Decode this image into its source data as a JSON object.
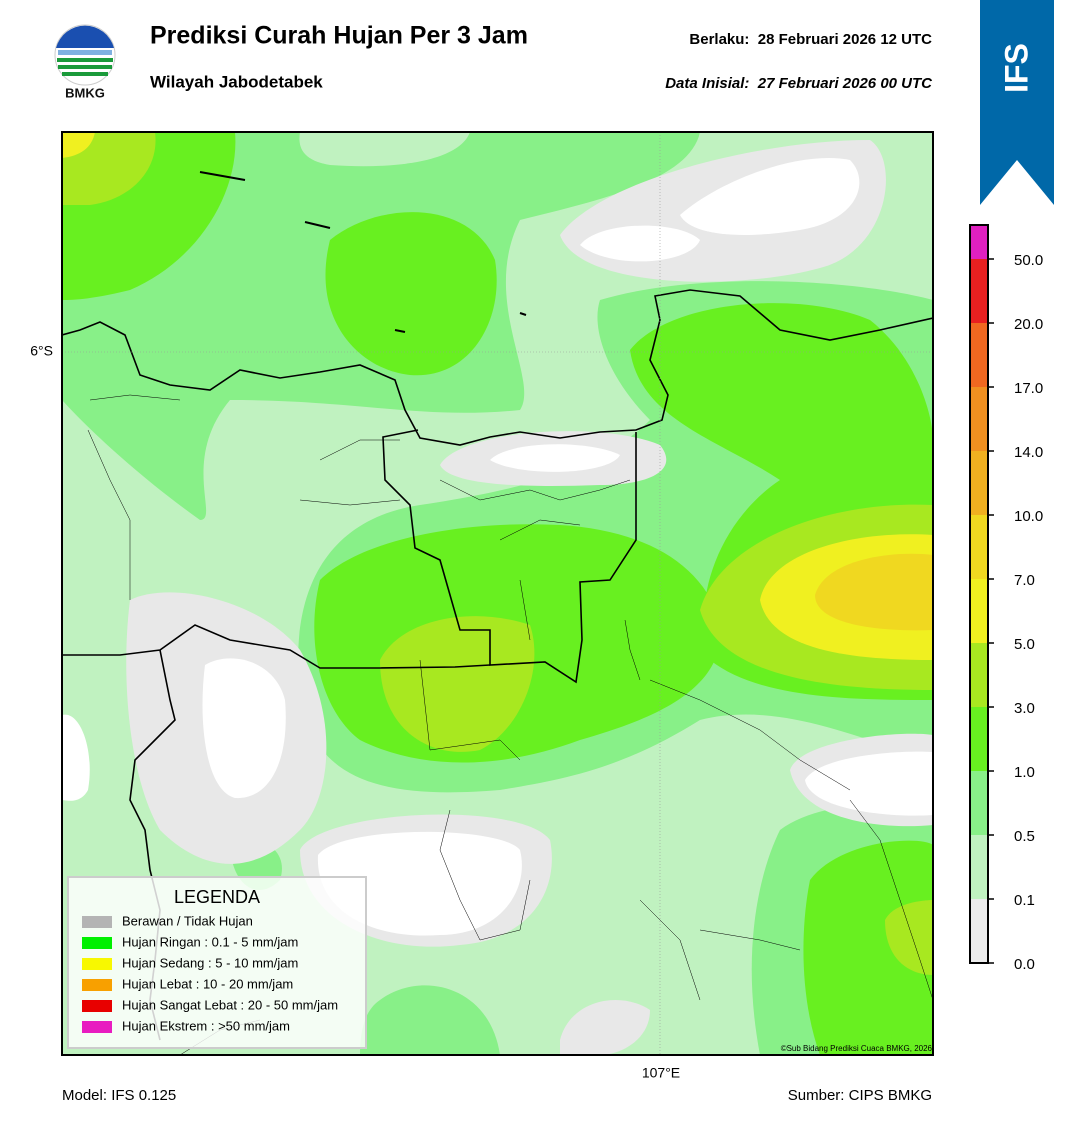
{
  "header": {
    "logo_text": "BMKG",
    "title": "Prediksi Curah Hujan Per 3 Jam",
    "subtitle": "Wilayah Jabodetabek",
    "valid": "Berlaku:  28 Februari 2026 12 UTC",
    "initial": "Data Inisial:  27 Februari 2026 00 UTC",
    "banner": "IFS"
  },
  "map": {
    "lat_label": "6°S",
    "lon_label": "107°E",
    "credit": "©Sub Bidang Prediksi Cuaca BMKG, 2026"
  },
  "legend": {
    "title": "LEGENDA",
    "items": [
      {
        "label": "Berawan / Tidak Hujan",
        "color": "#b4b4b4"
      },
      {
        "label": "Hujan Ringan : 0.1 - 5 mm/jam",
        "color": "#00f000"
      },
      {
        "label": "Hujan Sedang : 5 - 10 mm/jam",
        "color": "#f8f800"
      },
      {
        "label": "Hujan Lebat : 10 - 20 mm/jam",
        "color": "#f8a000"
      },
      {
        "label": "Hujan Sangat Lebat : 20 - 50 mm/jam",
        "color": "#e80000"
      },
      {
        "label": "Hujan Ekstrem : >50 mm/jam",
        "color": "#e81cc0"
      }
    ]
  },
  "colorbar": {
    "labels": [
      "0.0",
      "0.1",
      "0.5",
      "1.0",
      "3.0",
      "5.0",
      "7.0",
      "10.0",
      "14.0",
      "17.0",
      "20.0",
      "50.0"
    ],
    "colors": [
      "#ebebeb",
      "#c0f2c0",
      "#88f088",
      "#68f020",
      "#a8e820",
      "#f0f020",
      "#f0d820",
      "#f0b020",
      "#f09020",
      "#f06820",
      "#e82020",
      "#e020c0"
    ]
  },
  "footer": {
    "model": "Model: IFS 0.125",
    "source": "Sumber: CIPS BMKG"
  }
}
